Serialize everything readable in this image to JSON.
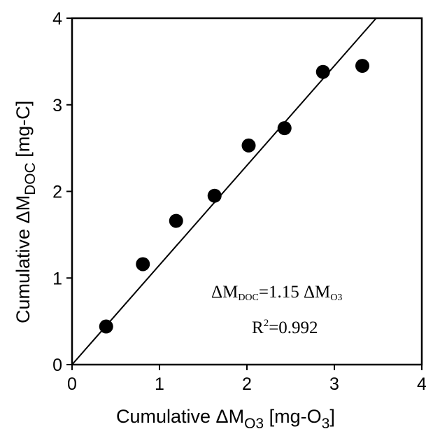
{
  "chart_data": {
    "type": "scatter",
    "xlabel": {
      "prefix": "Cumulative ΔM",
      "sub": "O3",
      "mid": " [mg-O",
      "sub2": "3",
      "end": "]"
    },
    "ylabel": {
      "prefix": "Cumulative ΔM",
      "sub": "DOC",
      "end": " [mg-C]"
    },
    "xlim": [
      0,
      4
    ],
    "ylim": [
      0,
      4
    ],
    "xticks": [
      "0",
      "1",
      "2",
      "3",
      "4"
    ],
    "yticks": [
      "0",
      "1",
      "2",
      "3",
      "4"
    ],
    "grid": false,
    "points": [
      {
        "x": 0.39,
        "y": 0.44
      },
      {
        "x": 0.81,
        "y": 1.16
      },
      {
        "x": 1.19,
        "y": 1.66
      },
      {
        "x": 1.63,
        "y": 1.95
      },
      {
        "x": 2.02,
        "y": 2.53
      },
      {
        "x": 2.43,
        "y": 2.73
      },
      {
        "x": 2.87,
        "y": 3.38
      },
      {
        "x": 3.32,
        "y": 3.45
      }
    ],
    "fit": {
      "slope": 1.15,
      "intercept": 0
    },
    "annotations": {
      "equation": {
        "a": "ΔM",
        "a_sub": "DOC",
        "b": "=1.15 ΔM",
        "b_sub": "O3"
      },
      "r2": {
        "a": "R",
        "sup": "2",
        "b": "=0.992"
      }
    }
  }
}
